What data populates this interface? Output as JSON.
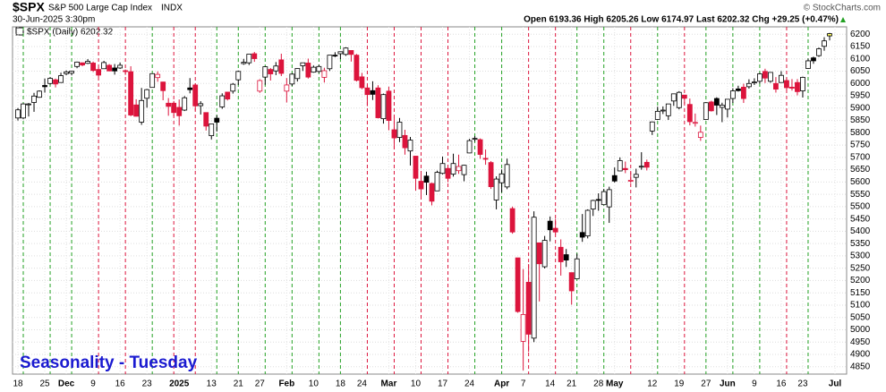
{
  "chart_data": {
    "type": "candlestick",
    "symbol": "$SPX",
    "name": "S&P 500 Large Cap Index",
    "exchange": "INDX",
    "timestamp": "30-Jun-2025 3:30pm",
    "quote": "Open 6193.36  High 6205.26  Low 6174.97  Last 6202.32  Chg +29.25 (+0.47%)",
    "copyright": "© StockCharts.com",
    "legend": "$SPX (Daily) 6202.32",
    "annotation": "Seasonality - Tuesday",
    "up_color": "#000000",
    "down_color": "#dc143c",
    "tuesday_up_color": "#22a022",
    "tuesday_down_color": "#dc143c",
    "grid": true,
    "ylim": [
      4820,
      6230
    ],
    "yticks": [
      4850,
      4900,
      4950,
      5000,
      5050,
      5100,
      5150,
      5200,
      5250,
      5300,
      5350,
      5400,
      5450,
      5500,
      5550,
      5600,
      5650,
      5700,
      5750,
      5800,
      5850,
      5900,
      5950,
      6000,
      6050,
      6100,
      6150,
      6200
    ],
    "categories": [
      "2024-11-18",
      "2024-11-19",
      "2024-11-20",
      "2024-11-21",
      "2024-11-22",
      "2024-11-25",
      "2024-11-26",
      "2024-11-27",
      "2024-11-29",
      "2024-12-02",
      "2024-12-03",
      "2024-12-04",
      "2024-12-05",
      "2024-12-06",
      "2024-12-09",
      "2024-12-10",
      "2024-12-11",
      "2024-12-12",
      "2024-12-13",
      "2024-12-16",
      "2024-12-17",
      "2024-12-18",
      "2024-12-19",
      "2024-12-20",
      "2024-12-23",
      "2024-12-24",
      "2024-12-26",
      "2024-12-27",
      "2024-12-30",
      "2024-12-31",
      "2025-01-02",
      "2025-01-03",
      "2025-01-06",
      "2025-01-07",
      "2025-01-08",
      "2025-01-10",
      "2025-01-13",
      "2025-01-14",
      "2025-01-15",
      "2025-01-16",
      "2025-01-17",
      "2025-01-21",
      "2025-01-22",
      "2025-01-23",
      "2025-01-24",
      "2025-01-27",
      "2025-01-28",
      "2025-01-29",
      "2025-01-30",
      "2025-01-31",
      "2025-02-03",
      "2025-02-04",
      "2025-02-05",
      "2025-02-06",
      "2025-02-07",
      "2025-02-10",
      "2025-02-11",
      "2025-02-12",
      "2025-02-13",
      "2025-02-14",
      "2025-02-18",
      "2025-02-19",
      "2025-02-20",
      "2025-02-21",
      "2025-02-24",
      "2025-02-25",
      "2025-02-26",
      "2025-02-27",
      "2025-02-28",
      "2025-03-03",
      "2025-03-04",
      "2025-03-05",
      "2025-03-06",
      "2025-03-07",
      "2025-03-10",
      "2025-03-11",
      "2025-03-12",
      "2025-03-13",
      "2025-03-14",
      "2025-03-17",
      "2025-03-18",
      "2025-03-19",
      "2025-03-20",
      "2025-03-21",
      "2025-03-24",
      "2025-03-25",
      "2025-03-26",
      "2025-03-27",
      "2025-03-28",
      "2025-03-31",
      "2025-04-01",
      "2025-04-02",
      "2025-04-03",
      "2025-04-04",
      "2025-04-07",
      "2025-04-08",
      "2025-04-09",
      "2025-04-10",
      "2025-04-11",
      "2025-04-14",
      "2025-04-15",
      "2025-04-16",
      "2025-04-17",
      "2025-04-21",
      "2025-04-22",
      "2025-04-23",
      "2025-04-24",
      "2025-04-25",
      "2025-04-28",
      "2025-04-29",
      "2025-04-30",
      "2025-05-01",
      "2025-05-02",
      "2025-05-05",
      "2025-05-06",
      "2025-05-07",
      "2025-05-08",
      "2025-05-09",
      "2025-05-12",
      "2025-05-13",
      "2025-05-14",
      "2025-05-15",
      "2025-05-16",
      "2025-05-19",
      "2025-05-20",
      "2025-05-21",
      "2025-05-22",
      "2025-05-23",
      "2025-05-27",
      "2025-05-28",
      "2025-05-29",
      "2025-05-30",
      "2025-06-02",
      "2025-06-03",
      "2025-06-04",
      "2025-06-05",
      "2025-06-06",
      "2025-06-09",
      "2025-06-10",
      "2025-06-11",
      "2025-06-12",
      "2025-06-13",
      "2025-06-16",
      "2025-06-17",
      "2025-06-18",
      "2025-06-20",
      "2025-06-23",
      "2025-06-24",
      "2025-06-25",
      "2025-06-26",
      "2025-06-27",
      "2025-06-30"
    ],
    "open": [
      5860,
      5860,
      5915,
      5923,
      5944,
      5992,
      6000,
      6015,
      6004,
      6040,
      6042,
      6069,
      6084,
      6082,
      6083,
      6057,
      6060,
      6074,
      6063,
      6063,
      6052,
      6048,
      5913,
      5843,
      5940,
      5984,
      6024,
      6006,
      5920,
      5920,
      5903,
      5892,
      5982,
      5994,
      5910,
      5882,
      5788,
      5859,
      5905,
      5965,
      5969,
      6015,
      6081,
      6084,
      6121,
      5969,
      6026,
      6057,
      6051,
      6096,
      5969,
      5998,
      6020,
      6072,
      6083,
      6046,
      6049,
      6025,
      6060,
      6115,
      6121,
      6118,
      6134,
      6115,
      6027,
      5982,
      5971,
      5982,
      5857,
      5969,
      5812,
      5781,
      5789,
      5726,
      5705,
      5603,
      5624,
      5594,
      5564,
      5635,
      5655,
      5632,
      5646,
      5630,
      5718,
      5775,
      5772,
      5696,
      5679,
      5527,
      5597,
      5580,
      5492,
      5292,
      4953,
      5193,
      4966,
      5353,
      5256,
      5441,
      5412,
      5335,
      5305,
      5232,
      5207,
      5395,
      5381,
      5490,
      5529,
      5508,
      5499,
      5626,
      5645,
      5655,
      5605,
      5619,
      5663,
      5680,
      5807,
      5854,
      5891,
      5869,
      5929,
      5902,
      5953,
      5915,
      5841,
      5781,
      5854,
      5925,
      5939,
      5903,
      5896,
      5939,
      5978,
      5985,
      5987,
      6005,
      6009,
      6049,
      6009,
      6000,
      6004,
      6012,
      5985,
      6004,
      5970,
      6061,
      6104,
      6113,
      6151,
      6193.36
    ],
    "high": [
      5900,
      5920,
      5921,
      5962,
      5972,
      6020,
      6026,
      6020,
      6044,
      6053,
      6052,
      6089,
      6085,
      6099,
      6089,
      6065,
      6092,
      6079,
      6079,
      6085,
      6057,
      6070,
      5936,
      5982,
      5978,
      6040,
      6049,
      6007,
      5941,
      5929,
      5935,
      5949,
      6022,
      6001,
      5928,
      5882,
      5836,
      5871,
      5960,
      5965,
      6002,
      6052,
      6100,
      6119,
      6128,
      6017,
      6070,
      6063,
      6087,
      6121,
      6022,
      6042,
      6062,
      6084,
      6101,
      6073,
      6076,
      6064,
      6116,
      6127,
      6129,
      6147,
      6134,
      6120,
      6043,
      5993,
      6009,
      5993,
      5959,
      5987,
      5866,
      5860,
      5812,
      5783,
      5705,
      5636,
      5642,
      5597,
      5646,
      5703,
      5659,
      5715,
      5711,
      5670,
      5775,
      5786,
      5777,
      5732,
      5685,
      5623,
      5651,
      5695,
      5500,
      5292,
      5246,
      5267,
      5481,
      5353,
      5381,
      5460,
      5450,
      5367,
      5328,
      5232,
      5309,
      5470,
      5489,
      5528,
      5554,
      5572,
      5581,
      5659,
      5700,
      5683,
      5640,
      5654,
      5721,
      5691,
      5845,
      5906,
      5907,
      5917,
      5958,
      5969,
      5954,
      5939,
      5878,
      5829,
      5924,
      5930,
      5944,
      5922,
      5937,
      5981,
      5991,
      5999,
      6017,
      6021,
      6043,
      6060,
      6046,
      6026,
      6050,
      6023,
      6018,
      6018,
      6028,
      6101,
      6109,
      6146,
      6188,
      6205.26
    ],
    "low": [
      5850,
      5855,
      5866,
      5885,
      5942,
      5963,
      5995,
      5984,
      6004,
      6034,
      6033,
      6062,
      6070,
      6079,
      6047,
      6026,
      6060,
      6051,
      6036,
      6059,
      6035,
      5867,
      5866,
      5832,
      5902,
      5983,
      6007,
      5932,
      5869,
      5868,
      5829,
      5888,
      5960,
      5890,
      5874,
      5809,
      5773,
      5805,
      5897,
      5931,
      5959,
      5994,
      6076,
      6075,
      6088,
      5962,
      5995,
      6012,
      6034,
      6030,
      5923,
      5990,
      6008,
      6051,
      6020,
      6044,
      6043,
      6004,
      6051,
      6107,
      6099,
      6112,
      6089,
      6008,
      5977,
      5908,
      5933,
      5858,
      5837,
      5810,
      5733,
      5762,
      5711,
      5667,
      5565,
      5529,
      5547,
      5505,
      5563,
      5631,
      5599,
      5622,
      5633,
      5603,
      5718,
      5764,
      5694,
      5670,
      5572,
      5489,
      5558,
      5571,
      5390,
      5069,
      4835,
      4910,
      4950,
      5115,
      5249,
      5359,
      5387,
      5220,
      5255,
      5102,
      5207,
      5357,
      5371,
      5462,
      5483,
      5506,
      5434,
      5598,
      5644,
      5636,
      5596,
      5578,
      5650,
      5647,
      5791,
      5852,
      5876,
      5852,
      5909,
      5895,
      5918,
      5830,
      5825,
      5767,
      5854,
      5886,
      5872,
      5843,
      5862,
      5921,
      5967,
      5921,
      5979,
      5994,
      6000,
      6002,
      6003,
      5963,
      6004,
      5974,
      5971,
      5952,
      5943,
      6059,
      6080,
      6108,
      6133,
      6174.97
    ],
    "close": [
      5893,
      5917,
      5917,
      5949,
      5969,
      5987,
      6021,
      5998,
      6032,
      6047,
      6050,
      6087,
      6075,
      6090,
      6053,
      6034,
      6085,
      6051,
      6051,
      6074,
      6050,
      5872,
      5867,
      5931,
      5975,
      6040,
      6037,
      5971,
      5907,
      5882,
      5869,
      5942,
      5975,
      5909,
      5918,
      5827,
      5836,
      5843,
      5950,
      5937,
      5997,
      6049,
      6086,
      6119,
      6101,
      6012,
      6068,
      6039,
      6071,
      6041,
      5994,
      6038,
      6061,
      6084,
      6026,
      6066,
      6069,
      6052,
      6115,
      6115,
      6129,
      6144,
      6118,
      6013,
      5983,
      5955,
      5956,
      5861,
      5955,
      5850,
      5779,
      5843,
      5739,
      5770,
      5615,
      5572,
      5599,
      5522,
      5639,
      5675,
      5615,
      5675,
      5663,
      5668,
      5768,
      5777,
      5712,
      5693,
      5581,
      5612,
      5633,
      5671,
      5397,
      5074,
      5062,
      4982,
      5457,
      5268,
      5363,
      5406,
      5397,
      5276,
      5283,
      5158,
      5288,
      5376,
      5485,
      5525,
      5529,
      5561,
      5569,
      5604,
      5687,
      5650,
      5607,
      5631,
      5664,
      5660,
      5844,
      5887,
      5892,
      5917,
      5958,
      5964,
      5940,
      5845,
      5842,
      5802,
      5922,
      5889,
      5912,
      5912,
      5936,
      5970,
      5971,
      5939,
      6000,
      6006,
      6039,
      6022,
      6045,
      5977,
      6033,
      5983,
      5981,
      5967,
      6025,
      6092,
      6092,
      6141,
      6173,
      6202.32
    ],
    "xticks": [
      {
        "value": "2024-11-18",
        "label": "18"
      },
      {
        "value": "2024-11-25",
        "label": "25"
      },
      {
        "value": "2024-12-02",
        "label": "Dec"
      },
      {
        "value": "2024-12-09",
        "label": "9"
      },
      {
        "value": "2024-12-16",
        "label": "16"
      },
      {
        "value": "2024-12-23",
        "label": "23"
      },
      {
        "value": "2025-01-02",
        "label": "2025"
      },
      {
        "value": "2025-01-13",
        "label": "13"
      },
      {
        "value": "2025-01-21",
        "label": "21"
      },
      {
        "value": "2025-01-27",
        "label": "27"
      },
      {
        "value": "2025-02-03",
        "label": "Feb"
      },
      {
        "value": "2025-02-10",
        "label": "10"
      },
      {
        "value": "2025-02-18",
        "label": "18"
      },
      {
        "value": "2025-02-24",
        "label": "24"
      },
      {
        "value": "2025-03-03",
        "label": "Mar"
      },
      {
        "value": "2025-03-10",
        "label": "10"
      },
      {
        "value": "2025-03-17",
        "label": "17"
      },
      {
        "value": "2025-03-24",
        "label": "24"
      },
      {
        "value": "2025-04-01",
        "label": "Apr"
      },
      {
        "value": "2025-04-07",
        "label": "7"
      },
      {
        "value": "2025-04-14",
        "label": "14"
      },
      {
        "value": "2025-04-21",
        "label": "21"
      },
      {
        "value": "2025-04-28",
        "label": "28"
      },
      {
        "value": "2025-05-01",
        "label": "May"
      },
      {
        "value": "2025-05-12",
        "label": "12"
      },
      {
        "value": "2025-05-19",
        "label": "19"
      },
      {
        "value": "2025-05-27",
        "label": "27"
      },
      {
        "value": "2025-06-02",
        "label": "Jun"
      },
      {
        "value": "2025-06-09",
        "label": "9"
      },
      {
        "value": "2025-06-16",
        "label": "16"
      },
      {
        "value": "2025-06-23",
        "label": "23"
      },
      {
        "value": "2025-07-01",
        "label": "Jul"
      }
    ]
  }
}
